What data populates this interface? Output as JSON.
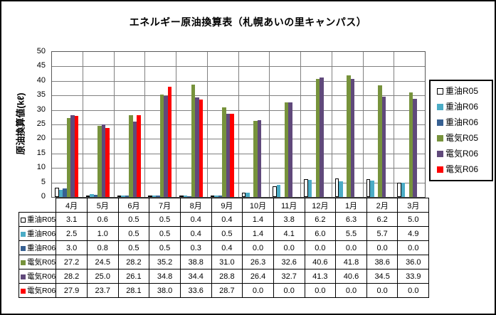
{
  "figure": {
    "background": "#FFFFFF",
    "border_color": "#000000"
  },
  "chart_data": {
    "type": "bar",
    "title": "エネルギー原油換算表（札幌あいの里キャンパス）",
    "ylabel": "原油換算値(kℓ)",
    "ylim": [
      0,
      50
    ],
    "ytick_step": 5,
    "grid": true,
    "legend_position": "right",
    "data_table_shown": true,
    "value_format_decimals": 1,
    "categories": [
      "4月",
      "5月",
      "6月",
      "7月",
      "8月",
      "9月",
      "10月",
      "11月",
      "12月",
      "1月",
      "2月",
      "3月"
    ],
    "series": [
      {
        "name": "重油R05",
        "fill": "#FFFFFF",
        "stroke": "#000000",
        "values": [
          3.1,
          0.6,
          0.5,
          0.5,
          0.4,
          0.4,
          1.4,
          3.8,
          6.2,
          6.3,
          6.2,
          5.0
        ]
      },
      {
        "name": "重油R06",
        "fill": "#4BACC6",
        "values": [
          2.5,
          1.0,
          0.5,
          0.5,
          0.4,
          0.5,
          1.4,
          4.1,
          6.0,
          5.5,
          5.7,
          4.9
        ]
      },
      {
        "name": "重油R06",
        "fill": "#376092",
        "values": [
          3.0,
          0.8,
          0.5,
          0.5,
          0.3,
          0.4,
          0.0,
          0.0,
          0.0,
          0.0,
          0.0,
          0.0
        ]
      },
      {
        "name": "電気R05",
        "fill": "#77933C",
        "values": [
          27.2,
          24.5,
          28.2,
          35.2,
          38.8,
          31.0,
          26.3,
          32.6,
          40.6,
          41.8,
          38.6,
          36.0
        ]
      },
      {
        "name": "電気R06",
        "fill": "#60497B",
        "values": [
          28.2,
          25.0,
          26.1,
          34.8,
          34.4,
          28.8,
          26.4,
          32.7,
          41.3,
          40.6,
          34.5,
          33.9
        ]
      },
      {
        "name": "電気R06",
        "fill": "#FF0000",
        "values": [
          27.9,
          23.7,
          28.1,
          38.0,
          33.6,
          28.7,
          0.0,
          0.0,
          0.0,
          0.0,
          0.0,
          0.0
        ]
      }
    ]
  },
  "colors": {
    "gridline": "#808080",
    "plot_border": "#595959",
    "table_border": "#000000",
    "legend_border": "#000000",
    "text": "#000000"
  }
}
